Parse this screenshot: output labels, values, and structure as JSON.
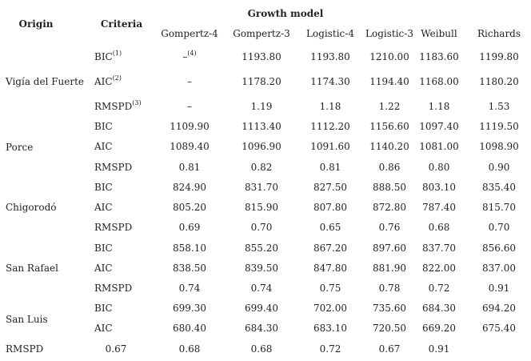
{
  "header": {
    "origin": "Origin",
    "criteria": "Criteria",
    "growth_model": "Growth model",
    "models": [
      "Gompertz-4",
      "Gompertz-3",
      "Logistic-4",
      "Logistic-3",
      "Weibull",
      "Richards"
    ]
  },
  "groups": [
    {
      "origin": "Vigía del Fuerte",
      "rows": [
        {
          "criteria": "BIC",
          "note": "(1)",
          "values": [
            "–",
            "1193.80",
            "1193.80",
            "1210.00",
            "1183.60",
            "1199.80"
          ],
          "first_value_note": "(4)"
        },
        {
          "criteria": "AIC",
          "note": "(2)",
          "values": [
            "–",
            "1178.20",
            "1174.30",
            "1194.40",
            "1168.00",
            "1180.20"
          ]
        },
        {
          "criteria": "RMSPD",
          "note": "(3)",
          "values": [
            "–",
            "1.19",
            "1.18",
            "1.22",
            "1.18",
            "1.53"
          ]
        }
      ]
    },
    {
      "origin": "Porce",
      "rows": [
        {
          "criteria": "BIC",
          "values": [
            "1109.90",
            "1113.40",
            "1112.20",
            "1156.60",
            "1097.40",
            "1119.50"
          ]
        },
        {
          "criteria": "AIC",
          "values": [
            "1089.40",
            "1096.90",
            "1091.60",
            "1140.20",
            "1081.00",
            "1098.90"
          ]
        },
        {
          "criteria": "RMSPD",
          "values": [
            "0.81",
            "0.82",
            "0.81",
            "0.86",
            "0.80",
            "0.90"
          ]
        }
      ]
    },
    {
      "origin": "Chigorodó",
      "rows": [
        {
          "criteria": "BIC",
          "values": [
            "824.90",
            "831.70",
            "827.50",
            "888.50",
            "803.10",
            "835.40"
          ]
        },
        {
          "criteria": "AIC",
          "values": [
            "805.20",
            "815.90",
            "807.80",
            "872.80",
            "787.40",
            "815.70"
          ]
        },
        {
          "criteria": "RMSPD",
          "values": [
            "0.69",
            "0.70",
            "0.65",
            "0.76",
            "0.68",
            "0.70"
          ]
        }
      ]
    },
    {
      "origin": "San Rafael",
      "rows": [
        {
          "criteria": "BIC",
          "values": [
            "858.10",
            "855.20",
            "867.20",
            "897.60",
            "837.70",
            "856.60"
          ]
        },
        {
          "criteria": "AIC",
          "values": [
            "838.50",
            "839.50",
            "847.80",
            "881.90",
            "822.00",
            "837.00"
          ]
        },
        {
          "criteria": "RMSPD",
          "values": [
            "0.74",
            "0.74",
            "0.75",
            "0.78",
            "0.72",
            "0.91"
          ]
        }
      ]
    },
    {
      "origin": "San Luis",
      "rows": [
        {
          "criteria": "BIC",
          "values": [
            "699.30",
            "699.40",
            "702.00",
            "735.60",
            "684.30",
            "694.20"
          ]
        },
        {
          "criteria": "AIC",
          "values": [
            "680.40",
            "684.30",
            "683.10",
            "720.50",
            "669.20",
            "675.40"
          ]
        }
      ]
    }
  ],
  "last_row": {
    "label": "RMSPD",
    "values": [
      "0.67",
      "0.68",
      "0.68",
      "0.72",
      "0.67",
      "0.91"
    ]
  }
}
